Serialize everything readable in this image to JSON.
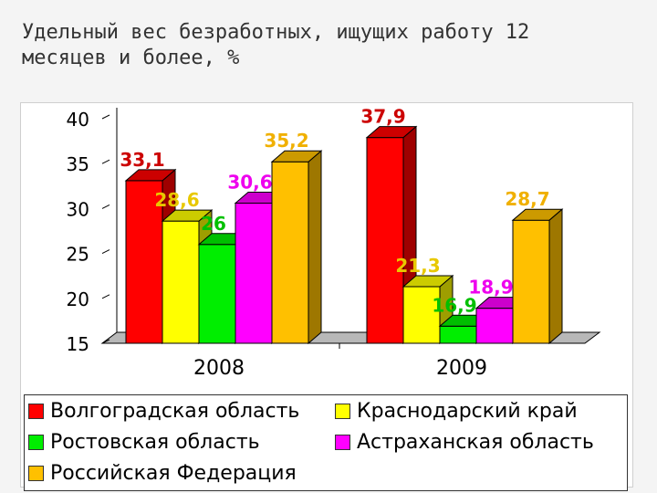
{
  "title": "Удельный вес безработных, ищущих работу 12 месяцев и более, %",
  "chart_data": {
    "type": "bar",
    "title": "Удельный вес безработных, ищущих работу 12 месяцев и более, %",
    "categories": [
      "2008",
      "2009"
    ],
    "ylim": [
      15,
      40
    ],
    "yticks": [
      "15",
      "20",
      "25",
      "30",
      "35",
      "40"
    ],
    "legend_position": "bottom",
    "series": [
      {
        "name": "Волгоградская область",
        "values": [
          33.1,
          37.9
        ],
        "labels": [
          "33,1",
          "37,9"
        ],
        "color": "#ff0000"
      },
      {
        "name": "Краснодарский край",
        "values": [
          28.6,
          21.3
        ],
        "labels": [
          "28,6",
          "21,3"
        ],
        "color": "#ffff00"
      },
      {
        "name": "Ростовская область",
        "values": [
          26,
          16.9
        ],
        "labels": [
          "26",
          "16,9"
        ],
        "color": "#00ee00"
      },
      {
        "name": "Астраханская область",
        "values": [
          30.6,
          18.9
        ],
        "labels": [
          "30,6",
          "18,9"
        ],
        "color": "#ff00ff"
      },
      {
        "name": "Российская Федерация",
        "values": [
          35.2,
          28.7
        ],
        "labels": [
          "35,2",
          "28,7"
        ],
        "color": "#ffc000"
      }
    ],
    "label_colors": [
      "#cc0000",
      "#e8c800",
      "#00c000",
      "#ee00ee",
      "#f0b000"
    ]
  }
}
